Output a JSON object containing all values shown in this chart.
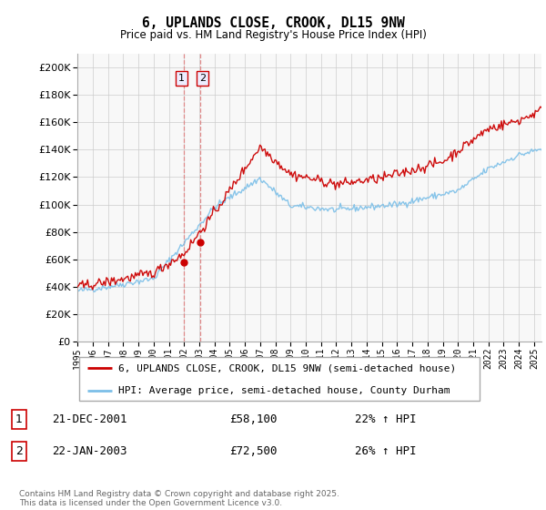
{
  "title": "6, UPLANDS CLOSE, CROOK, DL15 9NW",
  "subtitle": "Price paid vs. HM Land Registry's House Price Index (HPI)",
  "legend_line1": "6, UPLANDS CLOSE, CROOK, DL15 9NW (semi-detached house)",
  "legend_line2": "HPI: Average price, semi-detached house, County Durham",
  "transaction1_label": "1",
  "transaction1_date": "21-DEC-2001",
  "transaction1_price": "£58,100",
  "transaction1_hpi": "22% ↑ HPI",
  "transaction1_year": 2001.97,
  "transaction1_value": 58100,
  "transaction2_label": "2",
  "transaction2_date": "22-JAN-2003",
  "transaction2_price": "£72,500",
  "transaction2_hpi": "26% ↑ HPI",
  "transaction2_year": 2003.06,
  "transaction2_value": 72500,
  "hpi_color": "#7bbfe8",
  "price_color": "#cc0000",
  "vline_color": "#e08080",
  "footnote": "Contains HM Land Registry data © Crown copyright and database right 2025.\nThis data is licensed under the Open Government Licence v3.0.",
  "ylim": [
    0,
    210000
  ],
  "yticks": [
    0,
    20000,
    40000,
    60000,
    80000,
    100000,
    120000,
    140000,
    160000,
    180000,
    200000
  ],
  "xmin": 1995,
  "xmax": 2025.5,
  "bg_color": "#f8f8f8"
}
